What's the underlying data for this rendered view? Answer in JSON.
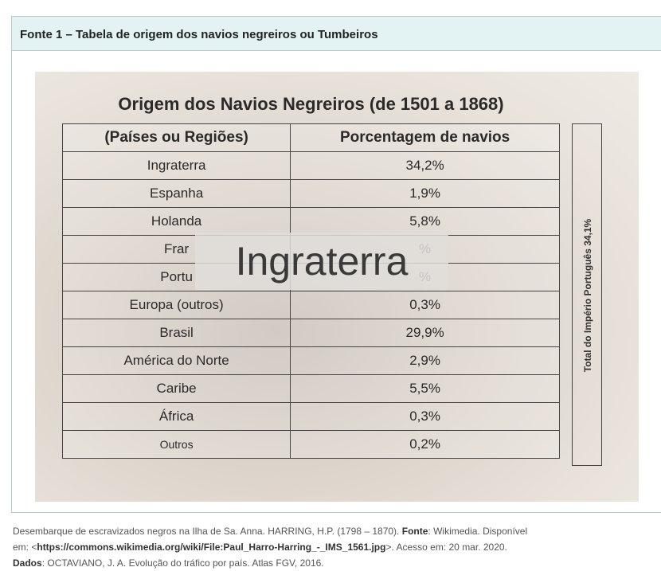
{
  "header": {
    "title": "Fonte 1 – Tabela de origem dos navios negreiros ou Tumbeiros"
  },
  "image": {
    "table_title": "Origem dos Navios Negreiros (de 1501 a 1868)",
    "table": {
      "headers": [
        "(Países ou Regiões)",
        "Porcentagem de navios"
      ],
      "rows": [
        [
          "Ingraterra",
          "34,2%"
        ],
        [
          "Espanha",
          "1,9%"
        ],
        [
          "Holanda",
          "5,8%"
        ],
        [
          "Frar",
          "%"
        ],
        [
          "Portu",
          "%"
        ],
        [
          "Europa (outros)",
          "0,3%"
        ],
        [
          "Brasil",
          "29,9%"
        ],
        [
          "América do Norte",
          "2,9%"
        ],
        [
          "Caribe",
          "5,5%"
        ],
        [
          "África",
          "0,3%"
        ],
        [
          "Outros",
          "0,2%"
        ]
      ]
    },
    "side_note": "Total do Império Português 34,1%",
    "overlay_text": "Ingraterra"
  },
  "caption": {
    "line1": [
      "Desembarque de escravizados negros na Ilha de Sa. Anna. HARRING, H.P. (1798 – 1870). ",
      "Fonte",
      ": Wikimedia. Disponível"
    ],
    "line2": [
      "em: <",
      "https://commons.wikimedia.org/wiki/File:Paul_Harro-Harring_-_IMS_1561.jpg",
      ">. Acesso em: 20 mar. 2020."
    ],
    "line3": [
      "Dados",
      ": OCTAVIANO, J. A. Evolução do tráfico por país. Atlas FGV, 2016."
    ]
  }
}
